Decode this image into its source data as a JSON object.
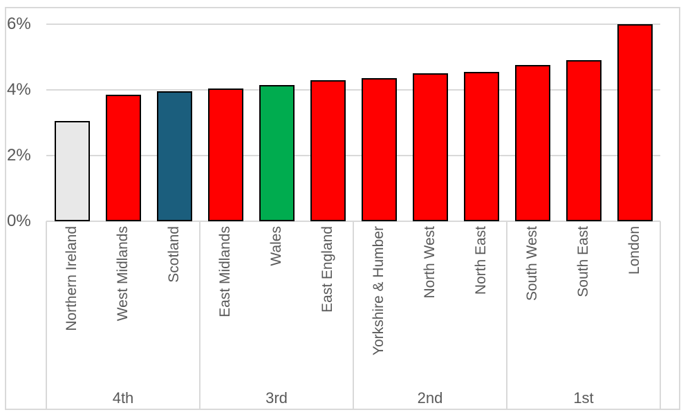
{
  "chart_data": {
    "type": "bar",
    "title": "",
    "xlabel": "",
    "ylabel": "",
    "categories": [
      "Northern Ireland",
      "West Midlands",
      "Scotland",
      "East Midlands",
      "Wales",
      "East England",
      "Yorkshire & Humber",
      "North West",
      "North East",
      "South West",
      "South East",
      "London"
    ],
    "values": [
      3.05,
      3.85,
      3.95,
      4.05,
      4.15,
      4.3,
      4.35,
      4.5,
      4.55,
      4.75,
      4.9,
      6.0
    ],
    "unit": "%",
    "bar_colors": [
      "#E8E8E8",
      "#FF0000",
      "#1B5E7D",
      "#FF0000",
      "#00AC4F",
      "#FF0000",
      "#FF0000",
      "#FF0000",
      "#FF0000",
      "#FF0000",
      "#FF0000",
      "#FF0000"
    ],
    "bar_border_color": "#000000",
    "groups": [
      {
        "label": "4th",
        "count": 3
      },
      {
        "label": "3rd",
        "count": 3
      },
      {
        "label": "2nd",
        "count": 3
      },
      {
        "label": "1st",
        "count": 3
      }
    ],
    "y_ticks": [
      {
        "value": 0,
        "label": "0%"
      },
      {
        "value": 2,
        "label": "2%"
      },
      {
        "value": 4,
        "label": "4%"
      },
      {
        "value": 6,
        "label": "6%"
      }
    ],
    "ylim": [
      0,
      6
    ],
    "grid": true,
    "legend": false,
    "colors": {
      "gridline": "#D9D9D9",
      "frame": "#D9D9D9",
      "text": "#595959"
    }
  }
}
